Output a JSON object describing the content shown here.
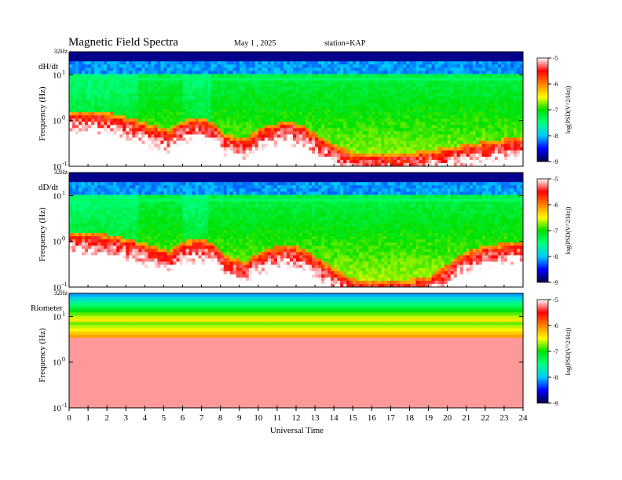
{
  "chart_data": {
    "type": "heatmap",
    "title": "Magnetic  Field  Spectra",
    "date": "May 1  , 2025",
    "station": "station=KAP",
    "xlabel": "Universal Time",
    "x_ticks": [
      "0",
      "1",
      "2",
      "3",
      "4",
      "5",
      "6",
      "7",
      "8",
      "9",
      "10",
      "11",
      "12",
      "13",
      "14",
      "15",
      "16",
      "17",
      "18",
      "19",
      "20",
      "21",
      "22",
      "23",
      "24"
    ],
    "xlim": [
      0,
      24
    ],
    "panels": [
      {
        "name": "dH/dt",
        "ylabel": "Frequency  (Hz)",
        "top_label": "32Hz",
        "y_ticks": [
          {
            "base": "10",
            "exp": "1",
            "value": 10
          },
          {
            "base": "10",
            "exp": "0",
            "value": 1
          },
          {
            "base": "10",
            "exp": "-1",
            "value": 0.1
          }
        ],
        "ylim": [
          0.1,
          32
        ],
        "line_freq": 8.0,
        "cutoff": [
          [
            0,
            1.6
          ],
          [
            2,
            1.5
          ],
          [
            4,
            0.9
          ],
          [
            5.3,
            0.6
          ],
          [
            6,
            1.0
          ],
          [
            7,
            1.15
          ],
          [
            7.7,
            0.9
          ],
          [
            8.2,
            0.5
          ],
          [
            9.3,
            0.4
          ],
          [
            10.5,
            0.8
          ],
          [
            11.5,
            0.95
          ],
          [
            12.4,
            0.8
          ],
          [
            13,
            0.5
          ],
          [
            14,
            0.3
          ],
          [
            15,
            0.2
          ],
          [
            17,
            0.18
          ],
          [
            19,
            0.22
          ],
          [
            21,
            0.3
          ],
          [
            22,
            0.35
          ],
          [
            23,
            0.4
          ],
          [
            24,
            0.45
          ]
        ]
      },
      {
        "name": "dD/dt",
        "ylabel": "Frequency  (Hz)",
        "top_label": "32Hz",
        "y_ticks": [
          {
            "base": "10",
            "exp": "1",
            "value": 10
          },
          {
            "base": "10",
            "exp": "0",
            "value": 1
          },
          {
            "base": "10",
            "exp": "-1",
            "value": 0.1
          }
        ],
        "ylim": [
          0.1,
          32
        ],
        "line_freq": 8.0,
        "cutoff": [
          [
            0,
            1.6
          ],
          [
            2,
            1.4
          ],
          [
            4,
            0.9
          ],
          [
            5.3,
            0.6
          ],
          [
            6,
            1.0
          ],
          [
            7,
            1.1
          ],
          [
            7.7,
            0.9
          ],
          [
            8.2,
            0.5
          ],
          [
            9.3,
            0.35
          ],
          [
            10.5,
            0.7
          ],
          [
            11.5,
            0.85
          ],
          [
            12.4,
            0.7
          ],
          [
            13,
            0.45
          ],
          [
            14,
            0.25
          ],
          [
            15,
            0.15
          ],
          [
            17,
            0.14
          ],
          [
            19,
            0.16
          ],
          [
            20,
            0.3
          ],
          [
            21,
            0.6
          ],
          [
            22,
            0.8
          ],
          [
            23,
            0.9
          ],
          [
            24,
            1.0
          ]
        ]
      },
      {
        "name": "Riometer",
        "ylabel": "Frequency  (Hz)",
        "top_label": "32Hz",
        "y_ticks": [
          {
            "base": "10",
            "exp": "1",
            "value": 10
          },
          {
            "base": "10",
            "exp": "0",
            "value": 1
          },
          {
            "base": "10",
            "exp": "-1",
            "value": 0.1
          }
        ],
        "ylim": [
          0.1,
          32
        ],
        "line_freq": null,
        "cutoff": [
          [
            0,
            7
          ],
          [
            24,
            7
          ]
        ]
      }
    ],
    "colorbar": {
      "label": "log(PSD(V^2/Hz))",
      "range": [
        -9,
        -5
      ],
      "ticks": [
        "-5",
        "-6",
        "-7",
        "-8",
        "-9"
      ],
      "colormap": [
        "#000040",
        "#0000ff",
        "#00c8ff",
        "#00ff80",
        "#00e000",
        "#ffff00",
        "#ff8000",
        "#ff0000",
        "#ffffff"
      ]
    }
  }
}
